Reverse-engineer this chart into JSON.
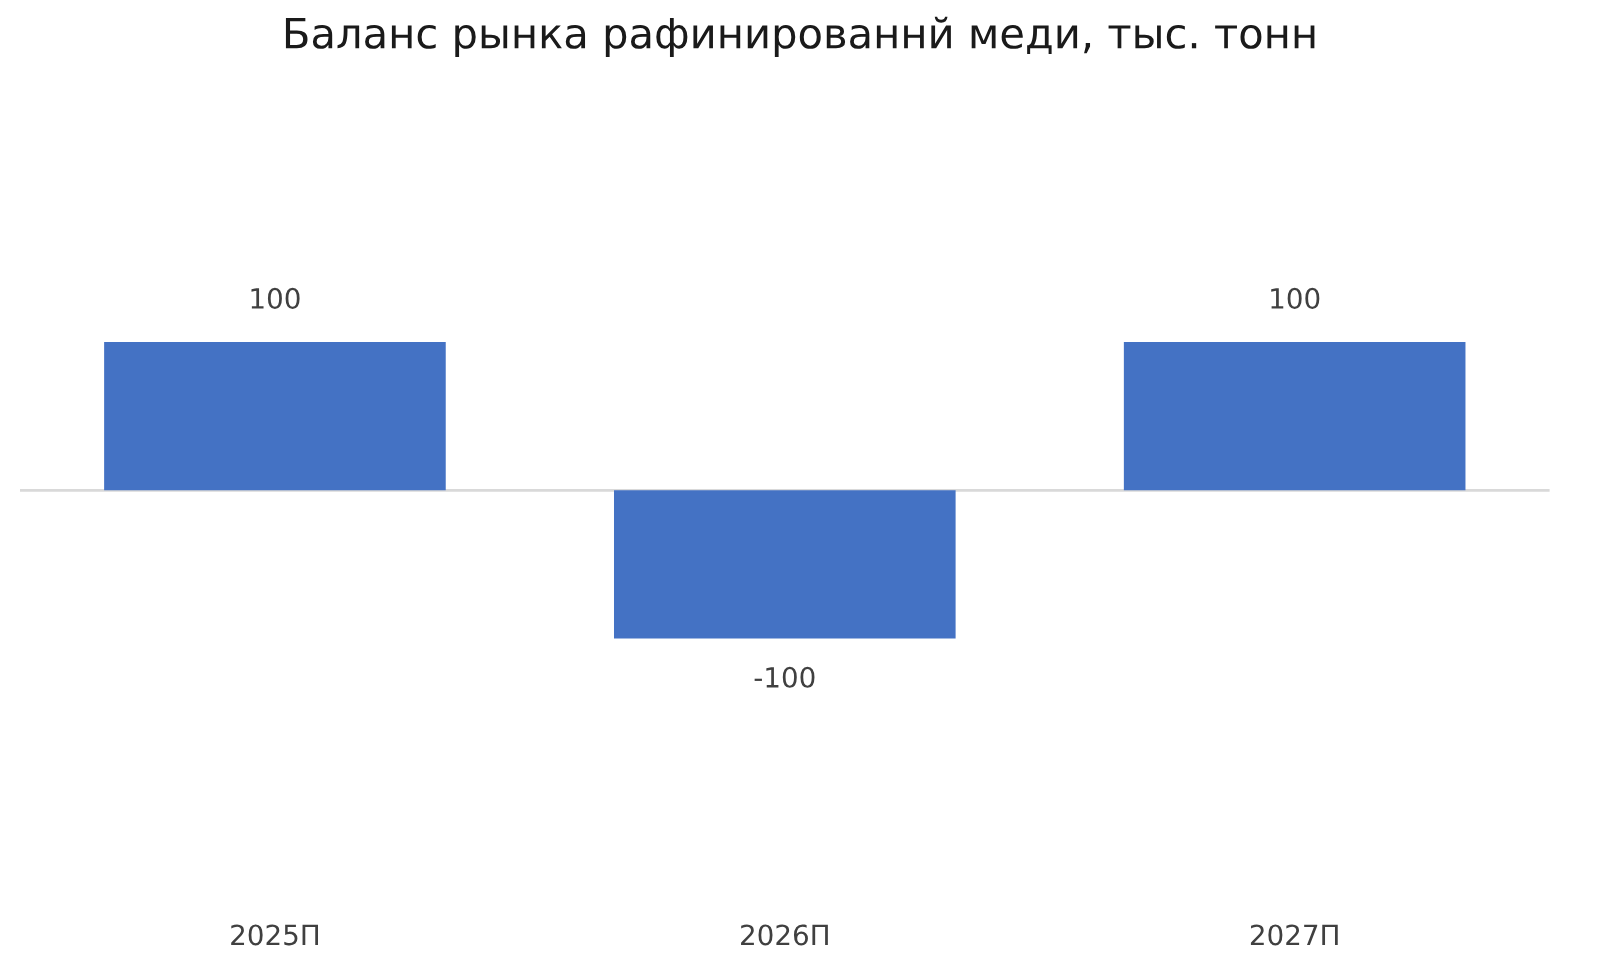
{
  "chart_data": {
    "type": "bar",
    "title": "Баланс рынка рафинированнй меди, тыс. тонн",
    "categories": [
      "2025П",
      "2026П",
      "2027П"
    ],
    "values": [
      100,
      -100,
      100
    ],
    "color": "#4472c4",
    "data_labels": true,
    "grid": false,
    "legend": false,
    "tick_labels": "x"
  }
}
